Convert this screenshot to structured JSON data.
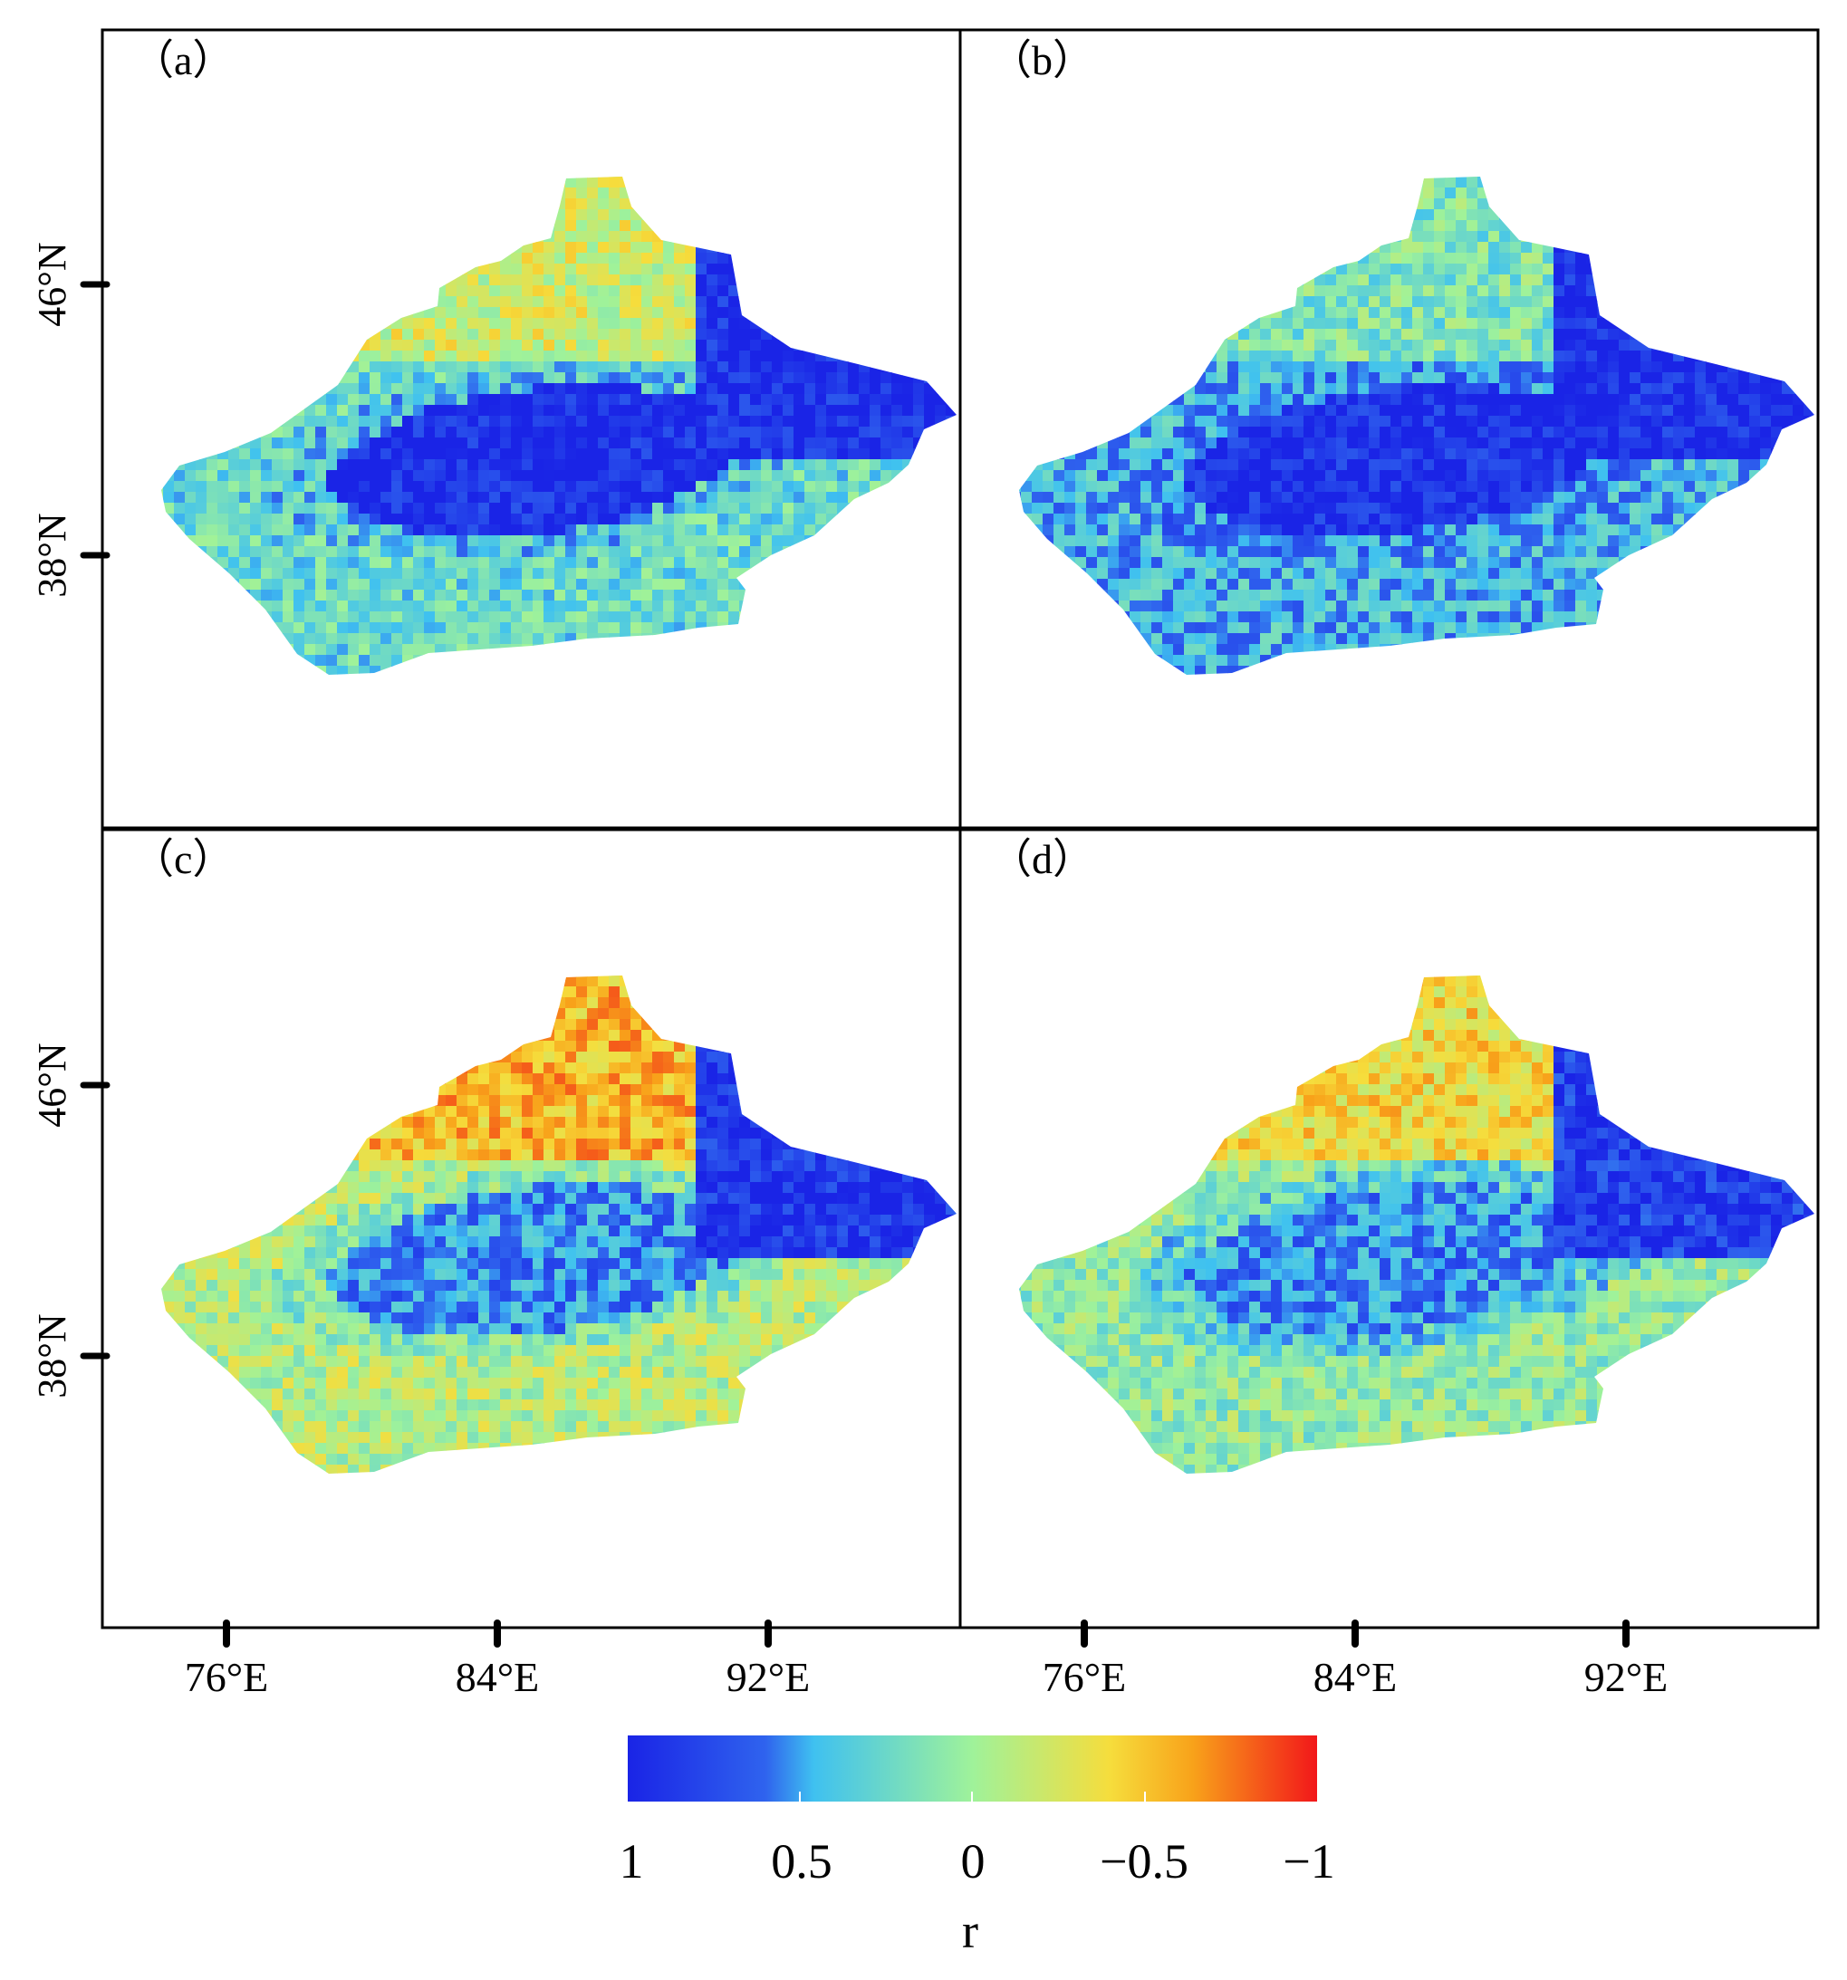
{
  "figure": {
    "panels": [
      {
        "id": "a",
        "label": "（a）"
      },
      {
        "id": "b",
        "label": "（b）"
      },
      {
        "id": "c",
        "label": "（c）"
      },
      {
        "id": "d",
        "label": "（d）"
      }
    ],
    "lat_ticks": [
      {
        "value": 46,
        "label": "46°N"
      },
      {
        "value": 38,
        "label": "38°N"
      }
    ],
    "lon_ticks": [
      {
        "value": 76,
        "label": "76°E"
      },
      {
        "value": 84,
        "label": "84°E"
      },
      {
        "value": 92,
        "label": "92°E"
      }
    ],
    "colorbar": {
      "title": "r",
      "range": [
        1,
        -1
      ],
      "ticks": [
        {
          "value": 1,
          "label": "1"
        },
        {
          "value": 0.5,
          "label": "0.5"
        },
        {
          "value": 0,
          "label": "0"
        },
        {
          "value": -0.5,
          "label": "−0.5"
        },
        {
          "value": -1,
          "label": "−1"
        }
      ],
      "colors": [
        "#1a24e6",
        "#2f63ee",
        "#3fc1f0",
        "#9ff29a",
        "#f6dd3c",
        "#f8a21a",
        "#f2171a"
      ]
    }
  }
}
